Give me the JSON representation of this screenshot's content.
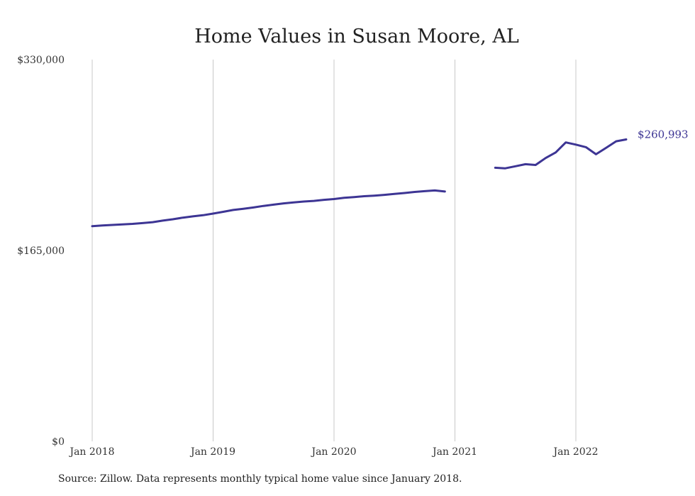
{
  "chart_data": {
    "type": "line",
    "title": "Home Values in Susan Moore, AL",
    "xlabel": "",
    "ylabel": "",
    "ylim": [
      0,
      330000
    ],
    "xlim": [
      "2018-01",
      "2022-05"
    ],
    "grid": "vertical",
    "y_ticks": [
      "$0",
      "$165,000",
      "$330,000"
    ],
    "y_tick_values": [
      0,
      165000,
      330000
    ],
    "x_ticks": [
      "Jan 2018",
      "Jan 2019",
      "Jan 2020",
      "Jan 2021",
      "Jan 2022"
    ],
    "x_tick_values": [
      "2018-01",
      "2019-01",
      "2020-01",
      "2021-01",
      "2022-01"
    ],
    "series": [
      {
        "color": "#3d3594",
        "points": [
          [
            "2018-01",
            186000
          ],
          [
            "2018-02",
            186600
          ],
          [
            "2018-03",
            187100
          ],
          [
            "2018-04",
            187600
          ],
          [
            "2018-05",
            188000
          ],
          [
            "2018-06",
            188700
          ],
          [
            "2018-07",
            189500
          ],
          [
            "2018-08",
            190800
          ],
          [
            "2018-09",
            192000
          ],
          [
            "2018-10",
            193400
          ],
          [
            "2018-11",
            194500
          ],
          [
            "2018-12",
            195500
          ],
          [
            "2019-01",
            196900
          ],
          [
            "2019-02",
            198400
          ],
          [
            "2019-03",
            200000
          ],
          [
            "2019-04",
            201000
          ],
          [
            "2019-05",
            202200
          ],
          [
            "2019-06",
            203500
          ],
          [
            "2019-07",
            204600
          ],
          [
            "2019-08",
            205700
          ],
          [
            "2019-09",
            206500
          ],
          [
            "2019-10",
            207300
          ],
          [
            "2019-11",
            207900
          ],
          [
            "2019-12",
            208800
          ],
          [
            "2020-01",
            209500
          ],
          [
            "2020-02",
            210500
          ],
          [
            "2020-03",
            211200
          ],
          [
            "2020-04",
            211900
          ],
          [
            "2020-05",
            212400
          ],
          [
            "2020-06",
            213100
          ],
          [
            "2020-07",
            213900
          ],
          [
            "2020-08",
            214700
          ],
          [
            "2020-09",
            215600
          ],
          [
            "2020-10",
            216300
          ],
          [
            "2020-11",
            216900
          ],
          [
            "2020-12",
            216000
          ],
          [
            "2021-01",
            null
          ],
          [
            "2021-02",
            null
          ],
          [
            "2021-03",
            null
          ],
          [
            "2021-04",
            null
          ],
          [
            "2021-05",
            236500
          ],
          [
            "2021-06",
            236000
          ],
          [
            "2021-07",
            237800
          ],
          [
            "2021-08",
            239600
          ],
          [
            "2021-09",
            238900
          ],
          [
            "2021-10",
            244900
          ],
          [
            "2021-11",
            249800
          ],
          [
            "2021-12",
            258400
          ],
          [
            "2022-01",
            256500
          ],
          [
            "2022-02",
            254300
          ],
          [
            "2022-03",
            248200
          ],
          [
            "2022-04",
            253700
          ],
          [
            "2022-05",
            259400
          ],
          [
            "2022-06",
            260993
          ]
        ]
      }
    ],
    "annotations": [
      {
        "text": "$260,993",
        "x": "2022-06",
        "y": 260993
      }
    ]
  },
  "source_note": "Source: Zillow. Data represents monthly typical home value since January 2018."
}
